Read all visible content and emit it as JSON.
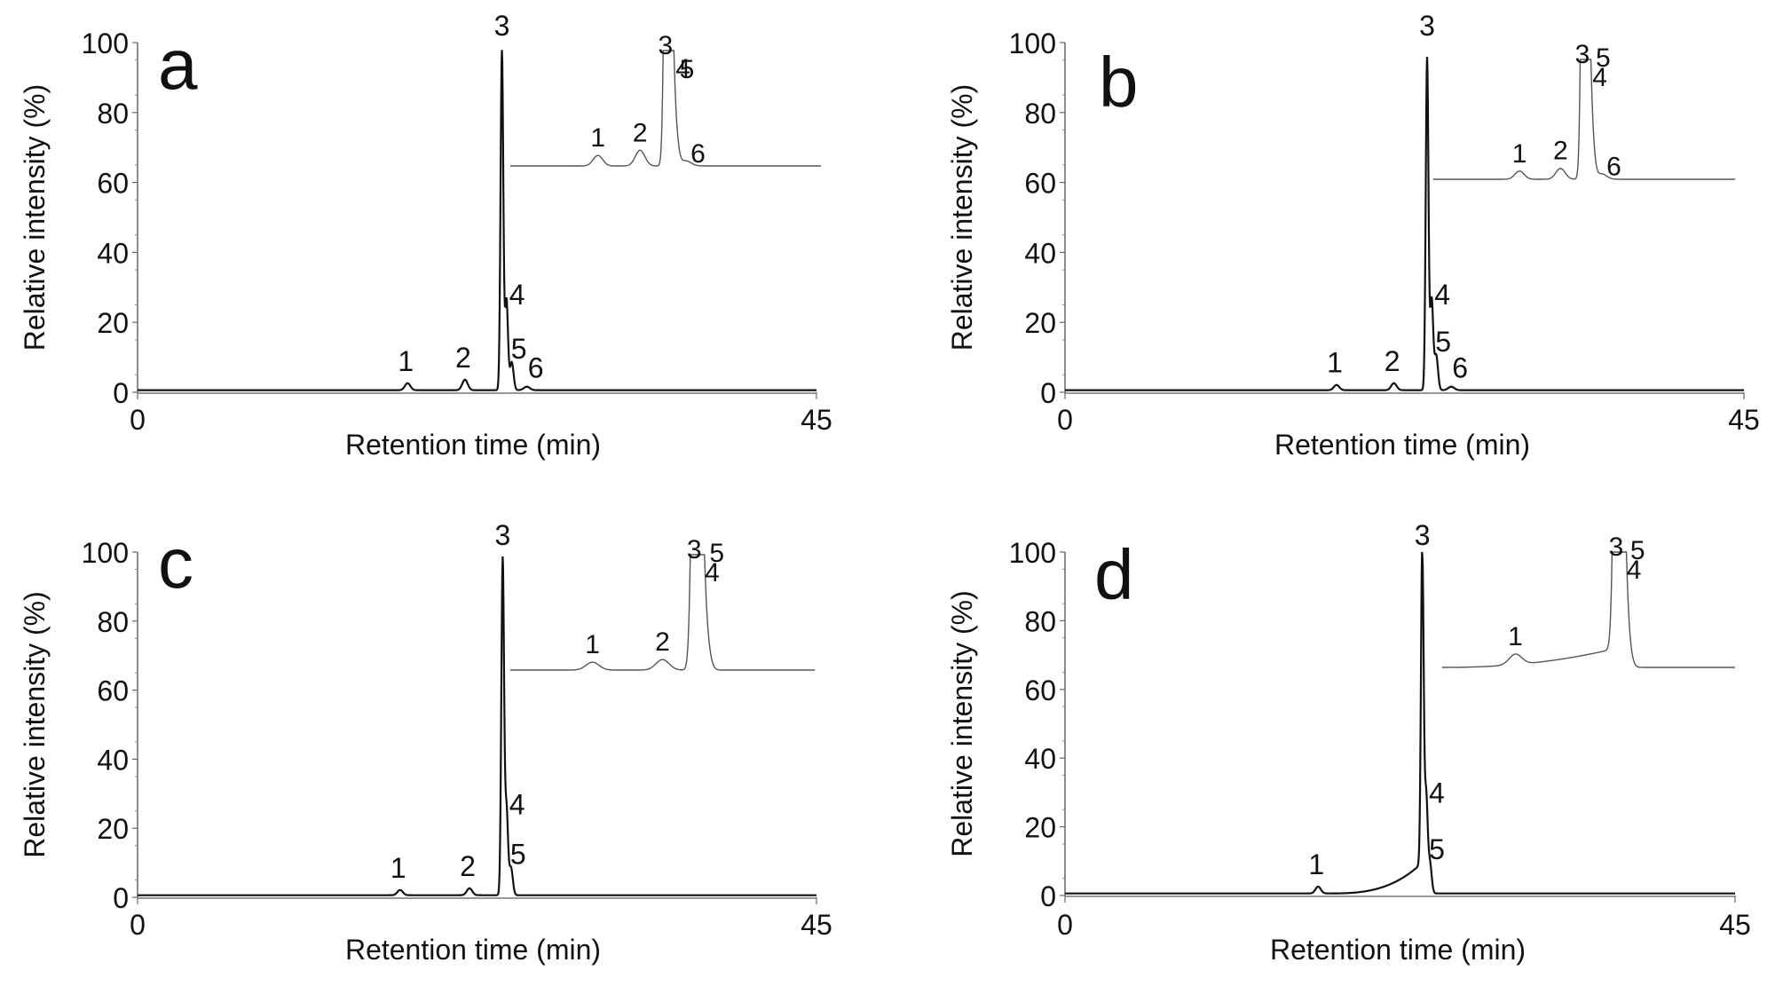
{
  "x_axis_label": "Retention time (min)",
  "y_axis_label": "Relative intensity (%)",
  "chart_data": [
    {
      "panel": "a",
      "type": "line",
      "xlim": [
        0,
        45
      ],
      "ylim": [
        0,
        100
      ],
      "x_ticks": [
        "0",
        "45"
      ],
      "y_ticks": [
        "0",
        "20",
        "40",
        "60",
        "80",
        "100"
      ],
      "xlabel": "Retention time (min)",
      "ylabel": "Relative intensity (%)",
      "peaks": [
        {
          "label": "1",
          "rt": 17.9,
          "height": 2.0,
          "width": 0.18
        },
        {
          "label": "2",
          "rt": 21.7,
          "height": 3.0,
          "width": 0.18
        },
        {
          "label": "3",
          "rt": 24.15,
          "height": 97.0,
          "width": 0.09
        },
        {
          "label": "4",
          "rt": 24.45,
          "height": 26.0,
          "width": 0.1
        },
        {
          "label": "5",
          "rt": 24.8,
          "height": 8.0,
          "width": 0.12
        },
        {
          "label": "6",
          "rt": 25.8,
          "height": 1.0,
          "width": 0.2
        }
      ],
      "inset": {
        "type": "line",
        "description": "zoomed view of peaks",
        "peak_labels": [
          "1",
          "2",
          "3",
          "4",
          "5",
          "6"
        ]
      }
    },
    {
      "panel": "b",
      "type": "line",
      "xlim": [
        0,
        45
      ],
      "ylim": [
        0,
        100
      ],
      "x_ticks": [
        "0",
        "45"
      ],
      "y_ticks": [
        "0",
        "20",
        "40",
        "60",
        "80",
        "100"
      ],
      "xlabel": "Retention time (min)",
      "ylabel": "Relative intensity (%)",
      "peaks": [
        {
          "label": "1",
          "rt": 18.0,
          "height": 1.5,
          "width": 0.18
        },
        {
          "label": "2",
          "rt": 21.8,
          "height": 2.0,
          "width": 0.18
        },
        {
          "label": "3",
          "rt": 24.0,
          "height": 95.0,
          "width": 0.09
        },
        {
          "label": "4",
          "rt": 24.3,
          "height": 26.0,
          "width": 0.1
        },
        {
          "label": "5",
          "rt": 24.6,
          "height": 10.0,
          "width": 0.12
        },
        {
          "label": "6",
          "rt": 25.6,
          "height": 1.0,
          "width": 0.2
        }
      ],
      "inset": {
        "type": "line",
        "description": "zoomed view of peaks",
        "peak_labels": [
          "1",
          "2",
          "3",
          "4",
          "5",
          "6"
        ]
      }
    },
    {
      "panel": "c",
      "type": "line",
      "xlim": [
        0,
        45
      ],
      "ylim": [
        0,
        100
      ],
      "x_ticks": [
        "0",
        "45"
      ],
      "y_ticks": [
        "0",
        "20",
        "40",
        "60",
        "80",
        "100"
      ],
      "xlabel": "Retention time (min)",
      "ylabel": "Relative intensity (%)",
      "peaks": [
        {
          "label": "1",
          "rt": 17.4,
          "height": 1.5,
          "width": 0.18
        },
        {
          "label": "2",
          "rt": 22.0,
          "height": 2.0,
          "width": 0.18
        },
        {
          "label": "3",
          "rt": 24.2,
          "height": 97.0,
          "width": 0.09
        },
        {
          "label": "4",
          "rt": 24.45,
          "height": 25.0,
          "width": 0.1
        },
        {
          "label": "5",
          "rt": 24.75,
          "height": 8.0,
          "width": 0.12
        }
      ],
      "inset": {
        "type": "line",
        "description": "zoomed view of peaks",
        "peak_labels": [
          "1",
          "2",
          "3",
          "4",
          "5"
        ]
      }
    },
    {
      "panel": "d",
      "type": "line",
      "xlim": [
        0,
        45
      ],
      "ylim": [
        0,
        100
      ],
      "x_ticks": [
        "0",
        "45"
      ],
      "y_ticks": [
        "0",
        "20",
        "40",
        "60",
        "80",
        "100"
      ],
      "xlabel": "Retention time (min)",
      "ylabel": "Relative intensity (%)",
      "peaks": [
        {
          "label": "1",
          "rt": 17.0,
          "height": 2.0,
          "width": 0.18
        },
        {
          "label": "3",
          "rt": 24.0,
          "height": 97.0,
          "width": 0.09
        },
        {
          "label": "4",
          "rt": 24.25,
          "height": 28.0,
          "width": 0.1
        },
        {
          "label": "5",
          "rt": 24.5,
          "height": 9.0,
          "width": 0.12
        }
      ],
      "inset": {
        "type": "line",
        "description": "zoomed view of peaks",
        "peak_labels": [
          "1",
          "3",
          "4",
          "5"
        ]
      }
    }
  ]
}
